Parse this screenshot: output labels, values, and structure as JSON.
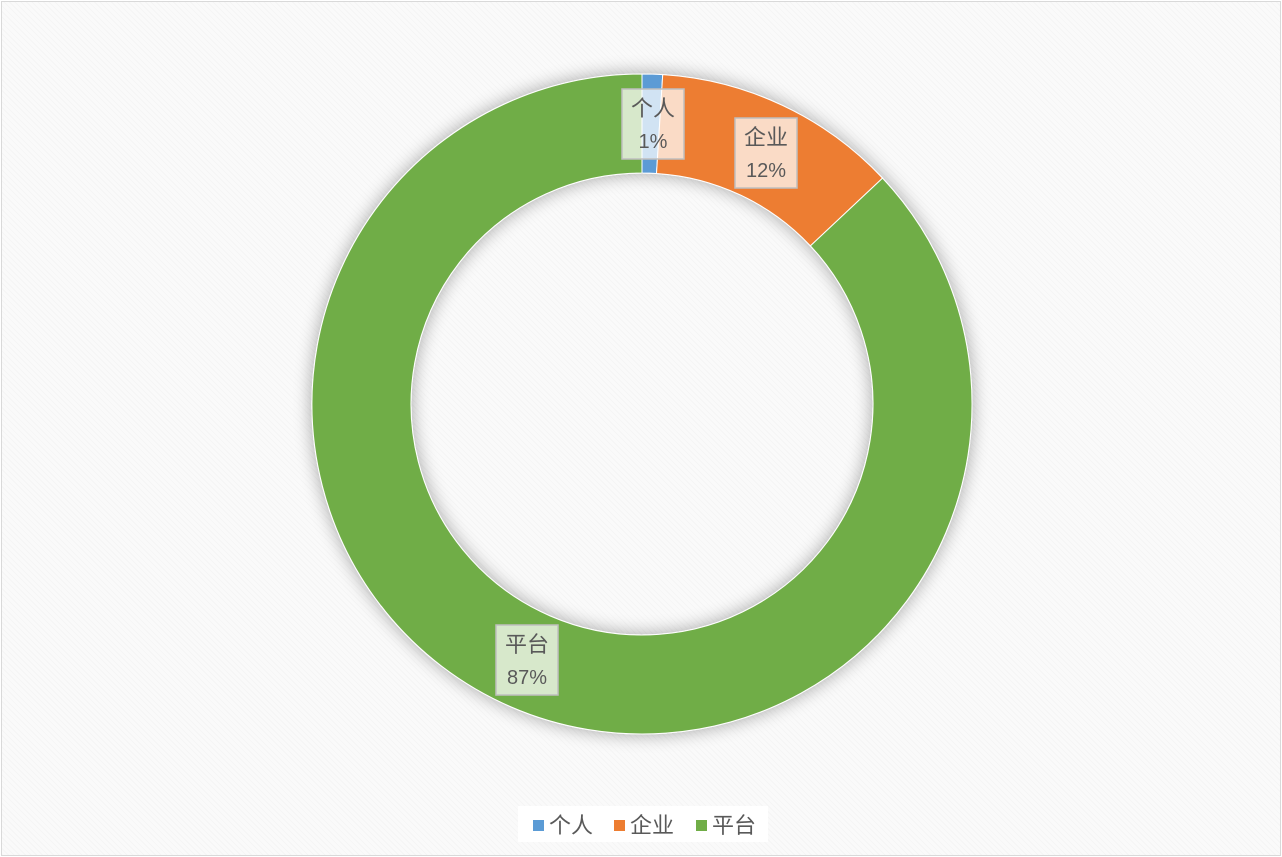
{
  "chart_data": {
    "type": "pie",
    "variant": "doughnut",
    "categories": [
      "个人",
      "企业",
      "平台"
    ],
    "values": [
      1,
      12,
      87
    ],
    "value_labels": [
      "1%",
      "12%",
      "87%"
    ],
    "colors": [
      "#5b9bd5",
      "#ed7d31",
      "#70ad47"
    ],
    "legend": {
      "position": "bottom",
      "entries": [
        "个人",
        "企业",
        "平台"
      ]
    },
    "title": ""
  }
}
